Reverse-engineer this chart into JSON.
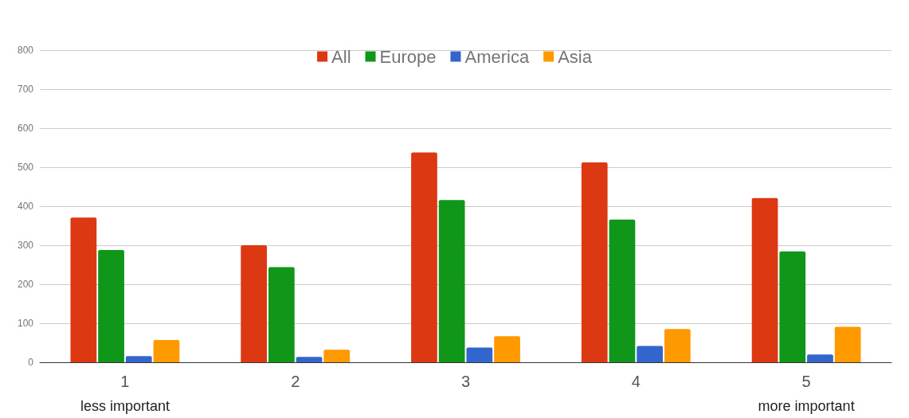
{
  "chart_data": {
    "type": "bar",
    "categories": [
      "1\nless important",
      "2",
      "3",
      "4",
      "5\nmore important"
    ],
    "series": [
      {
        "name": "All",
        "color": "#dc3912",
        "values": [
          371,
          300,
          538,
          512,
          421
        ]
      },
      {
        "name": "Europe",
        "color": "#109618",
        "values": [
          288,
          244,
          416,
          366,
          284
        ]
      },
      {
        "name": "America",
        "color": "#3366cc",
        "values": [
          16,
          14,
          38,
          42,
          20
        ]
      },
      {
        "name": "Asia",
        "color": "#ff9900",
        "values": [
          57,
          32,
          67,
          85,
          91
        ]
      }
    ],
    "ylim": [
      0,
      800
    ],
    "yticks": [
      0,
      100,
      200,
      300,
      400,
      500,
      600,
      700,
      800
    ],
    "grid": "y",
    "legend": "top"
  }
}
